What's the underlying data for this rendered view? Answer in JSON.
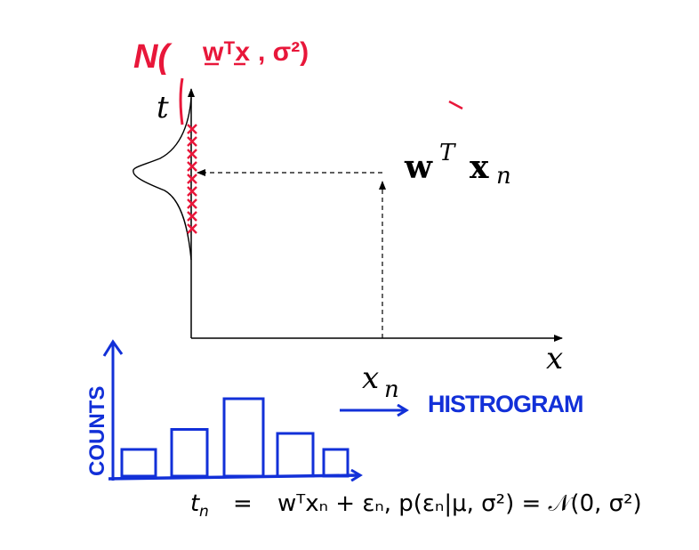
{
  "colors": {
    "ink": "#000000",
    "red_annotation": "#e8173a",
    "blue_annotation": "#1230d8"
  },
  "axes": {
    "t_label": "t",
    "x_label": "x",
    "xn_label": "x",
    "xn_subscript": "n",
    "wtx_w": "w",
    "wtx_sup": "T",
    "wtx_x": "x",
    "wtx_sub": "n"
  },
  "annotations": {
    "normal_open": "N(",
    "normal_mean": "wᵀx",
    "normal_rest": ", σ²)",
    "histogram": "HISTROGRAM",
    "counts": "COUNTS"
  },
  "equation": {
    "lhs": "t",
    "lhs_sub": "n",
    "eq": "=",
    "rhs": "wᵀxₙ + εₙ,  p(εₙ|μ, σ²) = 𝒩(0, σ²)"
  },
  "histogram_bars": [
    {
      "height": 1.0
    },
    {
      "height": 1.75
    },
    {
      "height": 2.9
    },
    {
      "height": 1.6
    },
    {
      "height": 1.0
    }
  ],
  "samples_count": 9
}
